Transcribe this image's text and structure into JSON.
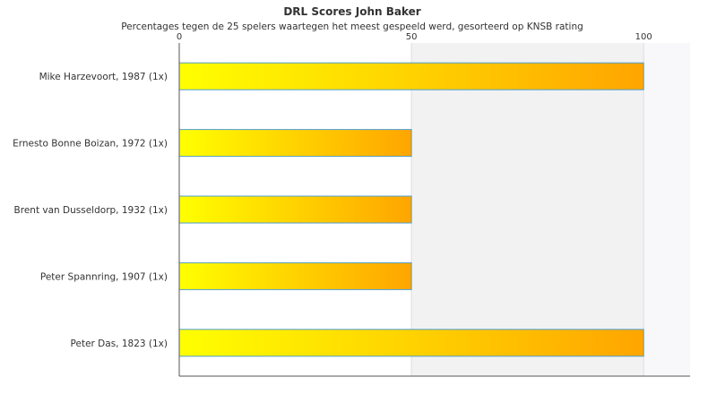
{
  "chart_data": {
    "type": "bar",
    "orientation": "horizontal",
    "title": "DRL Scores John Baker",
    "subtitle": "Percentages tegen de 25 spelers waartegen het meest gespeeld werd, gesorteerd op KNSB rating",
    "categories": [
      "Mike Harzevoort, 1987 (1x)",
      "Ernesto Bonne Boizan, 1972 (1x)",
      "Brent van Dusseldorp, 1932 (1x)",
      "Peter Spannring, 1907 (1x)",
      "Peter Das, 1823 (1x)"
    ],
    "values": [
      100,
      50,
      50,
      50,
      100
    ],
    "xlim": [
      0,
      110
    ],
    "xticks": [
      0,
      50,
      100
    ],
    "xaxis_position": "top",
    "grid": true,
    "legend": "none",
    "colors": {
      "bar_start": "#ffff00",
      "bar_end": "#ffa500",
      "bar_border": "#4f9fd0",
      "band_light": "#ffffff",
      "band_mid": "#f2f2f2",
      "band_end": "#f8f8fb",
      "grid": "#dddddd",
      "axis": "#555555"
    }
  }
}
